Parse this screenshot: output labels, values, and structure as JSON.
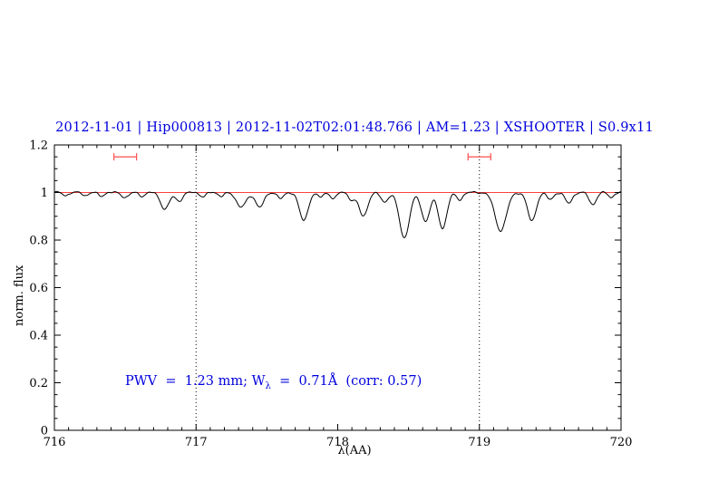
{
  "title": {
    "text": "2012-11-01 | Hip000813 | 2012-11-02T02:01:48.766 | AM=1.23 | XSHOOTER | S0.9x11",
    "color": "#0000dd"
  },
  "annotation": {
    "prefix": "PWV  =  1.23 mm; W",
    "sub": "λ",
    "suffix": "  =  0.71Å  (corr: 0.57)",
    "color": "#0000dd"
  },
  "chart_data": {
    "type": "line",
    "title": "2012-11-01 | Hip000813 | 2012-11-02T02:01:48.766 | AM=1.23 | XSHOOTER | S0.9x11",
    "xlabel": "λ(AA)",
    "ylabel": "norm. flux",
    "xlim": [
      716,
      720
    ],
    "ylim": [
      0,
      1.2
    ],
    "grid": false,
    "x_ticks": {
      "major": [
        716,
        717,
        718,
        719,
        720
      ],
      "labels": [
        "716",
        "717",
        "718",
        "719",
        "720"
      ],
      "minor_step": 0.1
    },
    "y_ticks": {
      "major": [
        0,
        0.2,
        0.4,
        0.6,
        0.8,
        1,
        1.2
      ],
      "labels": [
        "0",
        "0.2",
        "0.4",
        "0.6",
        "0.8",
        "1",
        "1.2"
      ],
      "minor_step": 0.05
    },
    "continuum": {
      "level": 1.0,
      "color": "#ff0000"
    },
    "vlines": {
      "x": [
        717,
        719
      ],
      "style": "dotted",
      "color": "#000000"
    },
    "interval_markers": {
      "y": 1.15,
      "color": "#ff4d4d",
      "ranges": [
        [
          716.42,
          716.58
        ],
        [
          718.92,
          719.08
        ]
      ]
    },
    "spectrum": {
      "color": "#000000",
      "continuum_level": 1.0,
      "noise_amplitude": 0.005,
      "sample_step": 0.005,
      "absorption_lines": [
        {
          "center": 716.08,
          "depth": 0.012,
          "sigma": 0.02
        },
        {
          "center": 716.22,
          "depth": 0.012,
          "sigma": 0.02
        },
        {
          "center": 716.33,
          "depth": 0.015,
          "sigma": 0.02
        },
        {
          "center": 716.5,
          "depth": 0.02,
          "sigma": 0.025
        },
        {
          "center": 716.62,
          "depth": 0.015,
          "sigma": 0.02
        },
        {
          "center": 716.78,
          "depth": 0.07,
          "sigma": 0.03
        },
        {
          "center": 716.88,
          "depth": 0.035,
          "sigma": 0.025
        },
        {
          "center": 717.05,
          "depth": 0.018,
          "sigma": 0.02
        },
        {
          "center": 717.18,
          "depth": 0.015,
          "sigma": 0.02
        },
        {
          "center": 717.32,
          "depth": 0.06,
          "sigma": 0.035
        },
        {
          "center": 717.45,
          "depth": 0.06,
          "sigma": 0.03
        },
        {
          "center": 717.6,
          "depth": 0.025,
          "sigma": 0.022
        },
        {
          "center": 717.76,
          "depth": 0.12,
          "sigma": 0.03
        },
        {
          "center": 717.88,
          "depth": 0.02,
          "sigma": 0.02
        },
        {
          "center": 717.97,
          "depth": 0.025,
          "sigma": 0.02
        },
        {
          "center": 718.1,
          "depth": 0.03,
          "sigma": 0.022
        },
        {
          "center": 718.18,
          "depth": 0.1,
          "sigma": 0.03
        },
        {
          "center": 718.33,
          "depth": 0.04,
          "sigma": 0.025
        },
        {
          "center": 718.47,
          "depth": 0.19,
          "sigma": 0.035
        },
        {
          "center": 718.62,
          "depth": 0.12,
          "sigma": 0.03
        },
        {
          "center": 718.74,
          "depth": 0.15,
          "sigma": 0.03
        },
        {
          "center": 718.86,
          "depth": 0.03,
          "sigma": 0.022
        },
        {
          "center": 719.15,
          "depth": 0.16,
          "sigma": 0.04
        },
        {
          "center": 719.37,
          "depth": 0.12,
          "sigma": 0.03
        },
        {
          "center": 719.5,
          "depth": 0.03,
          "sigma": 0.022
        },
        {
          "center": 719.63,
          "depth": 0.045,
          "sigma": 0.025
        },
        {
          "center": 719.8,
          "depth": 0.05,
          "sigma": 0.025
        },
        {
          "center": 719.93,
          "depth": 0.02,
          "sigma": 0.02
        }
      ]
    }
  }
}
